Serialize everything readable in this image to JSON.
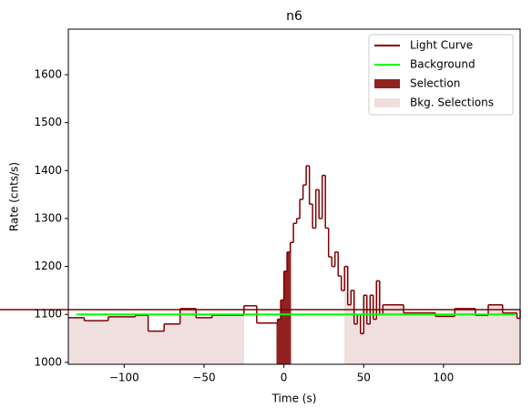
{
  "chart_data": {
    "type": "step",
    "title": "n6",
    "xlabel": "Time (s)",
    "ylabel": "Rate (cnts/s)",
    "xlim": [
      -135,
      148
    ],
    "ylim": [
      996,
      1695
    ],
    "xticks": [
      {
        "value": -100,
        "label": "−100"
      },
      {
        "value": -50,
        "label": "−50"
      },
      0,
      50,
      100
    ],
    "yticks": [
      1000,
      1100,
      1200,
      1300,
      1400,
      1500,
      1600
    ],
    "legend": "upper right",
    "light_curve": {
      "name": "Light Curve",
      "color": "#800000",
      "bins": [
        -135,
        -125,
        -110,
        -93,
        -85,
        -75,
        -65,
        -55,
        -45,
        -25,
        -17,
        -4,
        -2,
        0,
        2,
        4,
        6,
        8,
        10,
        12,
        14,
        16,
        18,
        20,
        22,
        24,
        26,
        28,
        30,
        32,
        34,
        36,
        38,
        40,
        42,
        44,
        46,
        48,
        50,
        52,
        54,
        56,
        58,
        60,
        62,
        75,
        95,
        107,
        120,
        128,
        137,
        146,
        148
      ],
      "values": [
        1093,
        1087,
        1095,
        1098,
        1065,
        1080,
        1112,
        1093,
        1098,
        1118,
        1082,
        1090,
        1130,
        1190,
        1230,
        1250,
        1290,
        1300,
        1340,
        1370,
        1410,
        1330,
        1280,
        1360,
        1300,
        1390,
        1280,
        1220,
        1200,
        1230,
        1180,
        1150,
        1200,
        1120,
        1150,
        1080,
        1100,
        1060,
        1140,
        1080,
        1140,
        1090,
        1170,
        1100,
        1120,
        1103,
        1096,
        1112,
        1098,
        1120,
        1103,
        1092,
        1110
      ]
    },
    "background": {
      "name": "Background",
      "color": "#00ff00",
      "x": [
        -130,
        145
      ],
      "values": [
        1100,
        1100
      ]
    },
    "selection": {
      "name": "Selection",
      "color": "#922222",
      "range": [
        -4.6,
        4.6
      ]
    },
    "bkg_selections": {
      "name": "Bkg. Selections",
      "color": "#f0dfdf",
      "ranges": [
        [
          -135,
          -25
        ],
        [
          38,
          148
        ]
      ]
    }
  }
}
